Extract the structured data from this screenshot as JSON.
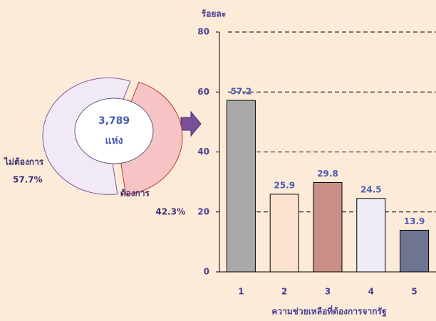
{
  "chart_data": [
    {
      "type": "donut",
      "center_texts": [
        "3,789",
        "แห่ง"
      ],
      "categories": [
        "ไม่ต้องการ",
        "ต้องการ"
      ],
      "values": [
        57.7,
        42.3
      ],
      "value_labels": [
        "57.7%",
        "42.3%"
      ],
      "colors": [
        "#f1e9f5",
        "#f6c4c4"
      ]
    },
    {
      "type": "bar",
      "ylabel": "ร้อยละ",
      "xlabel": "ความช่วยเหลือที่ต้องการจากรัฐ",
      "categories": [
        "1",
        "2",
        "3",
        "4",
        "5"
      ],
      "values": [
        57.2,
        25.9,
        29.8,
        24.5,
        13.9
      ],
      "colors": [
        "#a9a9a9",
        "#fbe3cf",
        "#c98f86",
        "#eeeef8",
        "#6d7590"
      ],
      "ylim": [
        0,
        80
      ],
      "yticks": [
        0,
        20,
        40,
        60,
        80
      ],
      "grid": true
    }
  ]
}
